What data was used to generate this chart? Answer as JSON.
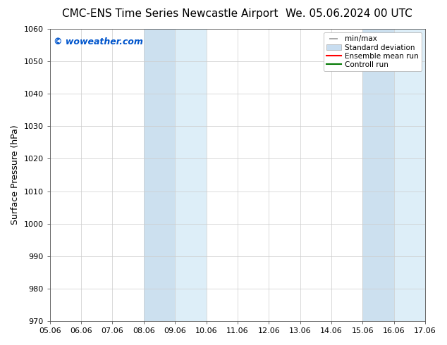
{
  "title_left": "CMC-ENS Time Series Newcastle Airport",
  "title_right": "We. 05.06.2024 00 UTC",
  "ylabel": "Surface Pressure (hPa)",
  "ylim": [
    970,
    1060
  ],
  "yticks": [
    970,
    980,
    990,
    1000,
    1010,
    1020,
    1030,
    1040,
    1050,
    1060
  ],
  "xtick_labels": [
    "05.06",
    "06.06",
    "07.06",
    "08.06",
    "09.06",
    "10.06",
    "11.06",
    "12.06",
    "13.06",
    "14.06",
    "15.06",
    "16.06",
    "17.06"
  ],
  "xtick_values": [
    5,
    6,
    7,
    8,
    9,
    10,
    11,
    12,
    13,
    14,
    15,
    16,
    17
  ],
  "shaded_bands": [
    {
      "x_start": 8.0,
      "x_mid": 9.0,
      "x_end": 10.0
    },
    {
      "x_start": 15.0,
      "x_mid": 16.0,
      "x_end": 17.0
    }
  ],
  "shaded_color_dark": "#cce0ef",
  "shaded_color_light": "#ddeef8",
  "watermark_text": "© woweather.com",
  "watermark_color": "#0055cc",
  "legend_items": [
    {
      "label": "min/max",
      "color": "#999999",
      "type": "errorbar"
    },
    {
      "label": "Standard deviation",
      "color": "#c8ddf0",
      "type": "bar"
    },
    {
      "label": "Ensemble mean run",
      "color": "#ff0000",
      "type": "line"
    },
    {
      "label": "Controll run",
      "color": "#007700",
      "type": "line"
    }
  ],
  "bg_color": "#ffffff",
  "plot_bg_color": "#ffffff",
  "grid_color": "#cccccc",
  "title_fontsize": 11,
  "ylabel_fontsize": 9,
  "tick_fontsize": 8,
  "legend_fontsize": 7.5,
  "watermark_fontsize": 9
}
